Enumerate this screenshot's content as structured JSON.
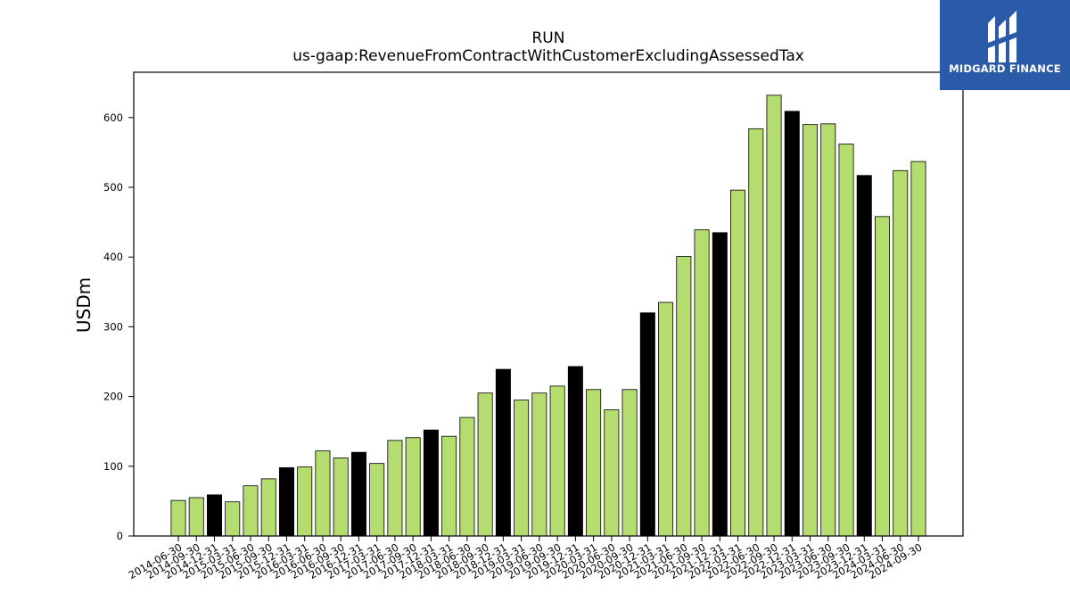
{
  "colors": {
    "bar_default": "#b5dc6e",
    "bar_highlight": "#000000",
    "edge": "#000000",
    "logo_bg": "#2a5aa8",
    "logo_fg": "#ffffff"
  },
  "logo": {
    "text": "MIDGARD FINANCE",
    "icon": "midgard-logo-icon"
  },
  "chart_data": {
    "type": "bar",
    "title": "RUN",
    "subtitle": "us-gaap:RevenueFromContractWithCustomerExcludingAssessedTax",
    "xlabel": "",
    "ylabel": "USDm",
    "ylim": [
      0,
      665
    ],
    "yticks": [
      0,
      100,
      200,
      300,
      400,
      500,
      600
    ],
    "grid": false,
    "categories": [
      "2014-06-30",
      "2014-09-30",
      "2014-12-31",
      "2015-03-31",
      "2015-06-30",
      "2015-09-30",
      "2015-12-31",
      "2016-03-31",
      "2016-06-30",
      "2016-09-30",
      "2016-12-31",
      "2017-03-31",
      "2017-06-30",
      "2017-09-30",
      "2017-12-31",
      "2018-03-31",
      "2018-06-30",
      "2018-09-30",
      "2018-12-31",
      "2019-03-31",
      "2019-06-30",
      "2019-09-30",
      "2019-12-31",
      "2020-03-31",
      "2020-06-30",
      "2020-09-30",
      "2020-12-31",
      "2021-03-31",
      "2021-06-30",
      "2021-09-30",
      "2021-12-31",
      "2022-03-31",
      "2022-06-30",
      "2022-09-30",
      "2022-12-31",
      "2023-03-31",
      "2023-06-30",
      "2023-09-30",
      "2023-12-31",
      "2024-03-31",
      "2024-06-30",
      "2024-09-30"
    ],
    "values": [
      51,
      55,
      59,
      49,
      72,
      82,
      98,
      99,
      122,
      112,
      120,
      104,
      137,
      141,
      152,
      143,
      170,
      205,
      239,
      195,
      205,
      215,
      243,
      210,
      181,
      210,
      320,
      335,
      401,
      439,
      435,
      496,
      584,
      632,
      609,
      590,
      591,
      562,
      517,
      458,
      524,
      537
    ],
    "highlight_quarter": "12-31"
  }
}
